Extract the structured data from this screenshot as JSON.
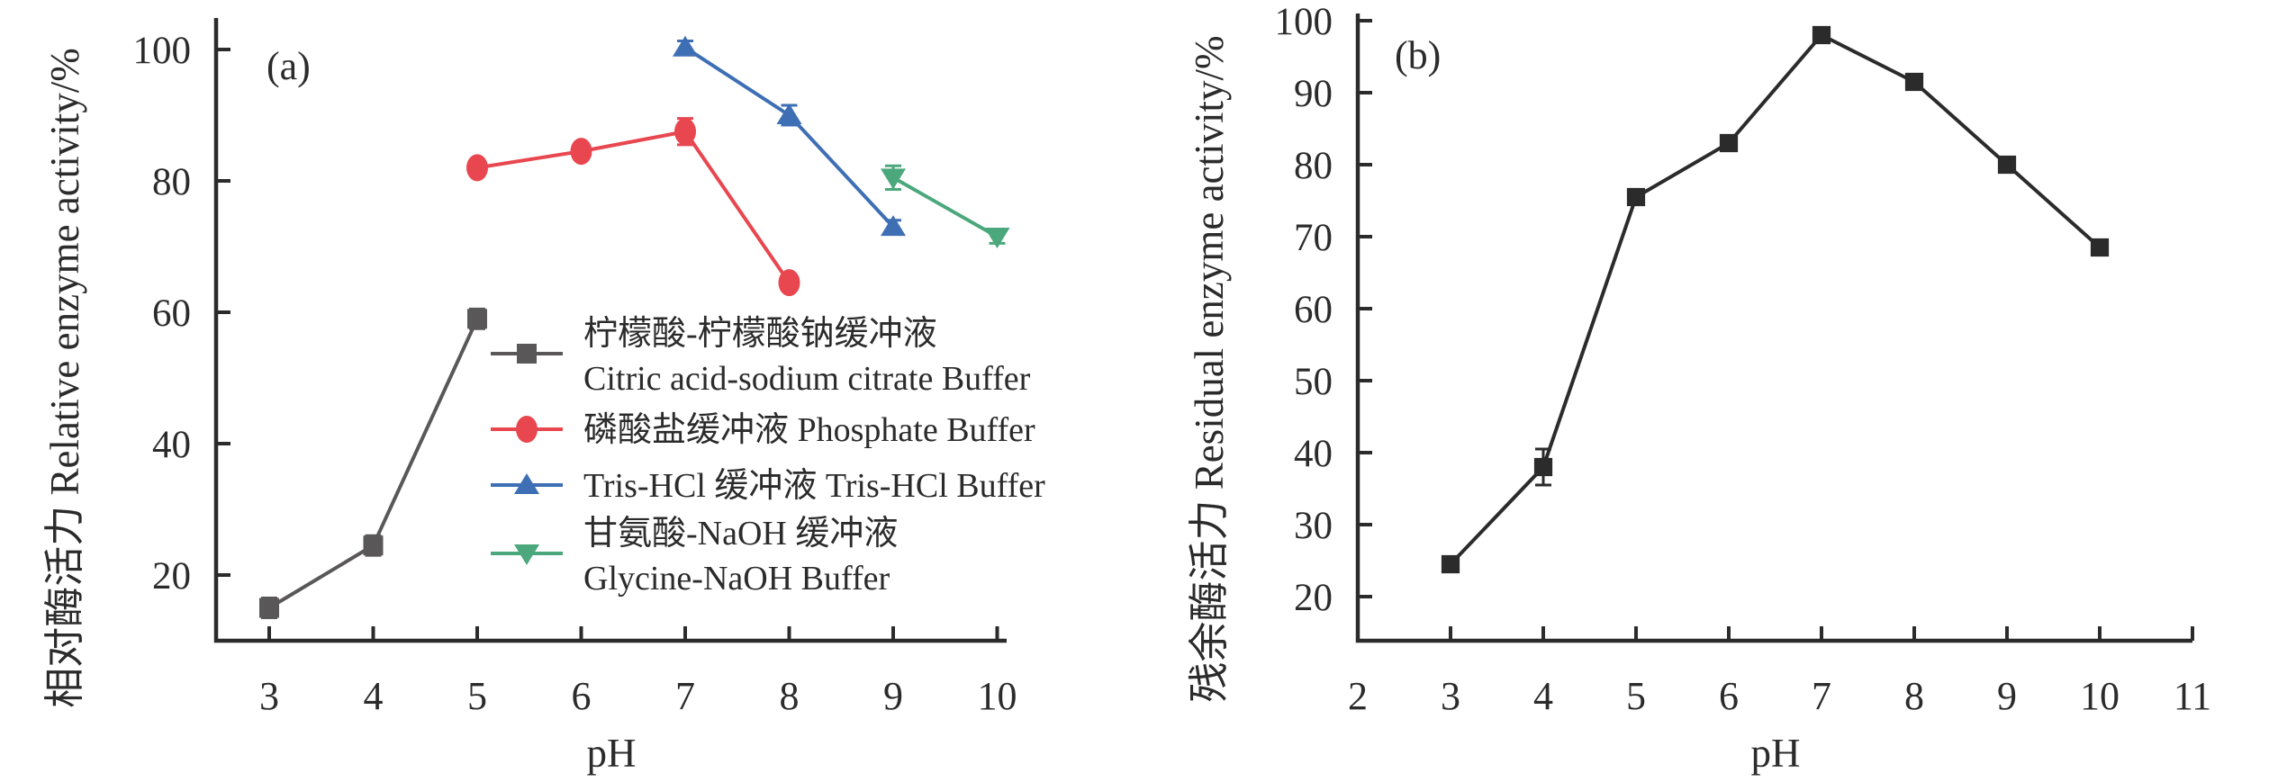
{
  "figure": {
    "panel_a_label": "(a)",
    "panel_b_label": "(b)"
  },
  "chart_data": [
    {
      "type": "line",
      "panel_label": "(a)",
      "xlabel": "pH",
      "ylabel": "相对酶活力 Relative enzyme activity/%",
      "x_ticks": [
        3,
        4,
        5,
        6,
        7,
        8,
        9,
        10
      ],
      "y_ticks": [
        20,
        40,
        60,
        80,
        100
      ],
      "xlim": [
        2.5,
        10.1
      ],
      "ylim": [
        10,
        105
      ],
      "grid": false,
      "legend_position": "inside-center-bottom",
      "series": [
        {
          "key": "citric-acid-sodium-citrate-buffer",
          "name": "柠檬酸-柠檬酸钠缓冲液 Citric acid-sodium citrate Buffer",
          "legend_lines": [
            "柠檬酸-柠檬酸钠缓冲液",
            "Citric acid-sodium citrate Buffer"
          ],
          "color": "#595757",
          "marker": "square",
          "x": [
            3,
            4,
            5
          ],
          "y": [
            15,
            24.5,
            59
          ],
          "yerr": [
            1.5,
            1.5,
            1.5
          ]
        },
        {
          "key": "phosphate-buffer",
          "name": "磷酸盐缓冲液 Phosphate Buffer",
          "legend_lines": [
            "磷酸盐缓冲液 Phosphate Buffer"
          ],
          "color": "#e8474f",
          "marker": "circle",
          "x": [
            5,
            6,
            7,
            8
          ],
          "y": [
            82,
            84.5,
            87.5,
            64.5
          ],
          "yerr": [
            1,
            1,
            2,
            1
          ]
        },
        {
          "key": "tris-hcl-buffer",
          "name": "Tris-HCl 缓冲液 Tris-HCl Buffer",
          "legend_lines": [
            "Tris-HCl 缓冲液 Tris-HCl Buffer"
          ],
          "color": "#3e6fb4",
          "marker": "triangle-up",
          "x": [
            7,
            8,
            9
          ],
          "y": [
            100.3,
            90,
            73
          ],
          "yerr": [
            1,
            1.5,
            1
          ]
        },
        {
          "key": "glycine-naoh-buffer",
          "name": "甘氨酸-NaOH 缓冲液 Glycine-NaOH Buffer",
          "legend_lines": [
            "甘氨酸-NaOH 缓冲液",
            "Glycine-NaOH Buffer"
          ],
          "color": "#4ba87c",
          "marker": "triangle-down",
          "x": [
            9,
            10
          ],
          "y": [
            80.5,
            71.5
          ],
          "yerr": [
            1.8,
            1
          ]
        }
      ]
    },
    {
      "type": "line",
      "panel_label": "(b)",
      "xlabel": "pH",
      "ylabel": "残余酶活力 Residual enzyme activity/%",
      "x_ticks": [
        2,
        3,
        4,
        5,
        6,
        7,
        8,
        9,
        10,
        11
      ],
      "y_ticks": [
        20,
        30,
        40,
        50,
        60,
        70,
        80,
        90,
        100
      ],
      "xlim": [
        2,
        11
      ],
      "ylim": [
        14,
        100
      ],
      "grid": false,
      "legend_position": "none",
      "series": [
        {
          "key": "residual-enzyme-activity",
          "name": "残余酶活力 Residual enzyme activity",
          "legend_lines": [],
          "color": "#2b2b2b",
          "marker": "square",
          "x": [
            3,
            4,
            5,
            6,
            7,
            8,
            9,
            10
          ],
          "y": [
            24.5,
            38,
            75.5,
            83,
            98,
            91.5,
            80,
            68.5
          ],
          "yerr": [
            1,
            2.5,
            1,
            1,
            1,
            1,
            1,
            1
          ]
        }
      ]
    }
  ],
  "style": {
    "axis_color": "#2b2b2b",
    "background": "#ffffff"
  }
}
